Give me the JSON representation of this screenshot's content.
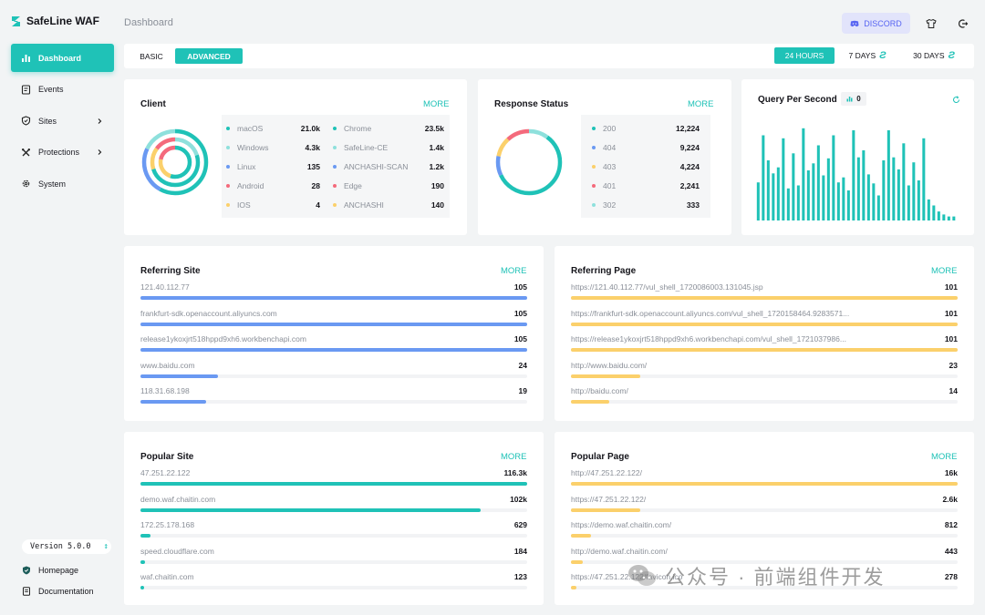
{
  "app": {
    "name": "SafeLine WAF",
    "page_title": "Dashboard"
  },
  "colors": {
    "accent": "#1fc2b7",
    "blue": "#6a99f2",
    "yellow": "#fbd06b",
    "red": "#f46a7c",
    "light_teal": "#8ee0dc",
    "discord": "#5865f2"
  },
  "sidebar": {
    "items": [
      {
        "label": "Dashboard",
        "icon": "bar-chart-icon",
        "active": true
      },
      {
        "label": "Events",
        "icon": "document-list-icon"
      },
      {
        "label": "Sites",
        "icon": "shield-icon",
        "has_children": true
      },
      {
        "label": "Protections",
        "icon": "tools-icon",
        "has_children": true
      },
      {
        "label": "System",
        "icon": "gear-icon"
      }
    ],
    "version": "Version 5.0.0",
    "homepage": "Homepage",
    "documentation": "Documentation"
  },
  "header": {
    "discord_label": "DISCORD"
  },
  "tabs": {
    "basic": "BASIC",
    "advanced": "ADVANCED"
  },
  "ranges": {
    "h24": "24 HOURS",
    "d7": "7 DAYS",
    "d30": "30 DAYS"
  },
  "client": {
    "title": "Client",
    "more": "MORE",
    "left": [
      {
        "name": "macOS",
        "value": "21.0k",
        "color": "#1fc2b7"
      },
      {
        "name": "Windows",
        "value": "4.3k",
        "color": "#8ee0dc"
      },
      {
        "name": "Linux",
        "value": "135",
        "color": "#6a99f2"
      },
      {
        "name": "Android",
        "value": "28",
        "color": "#f46a7c"
      },
      {
        "name": "IOS",
        "value": "4",
        "color": "#fbd06b"
      }
    ],
    "right": [
      {
        "name": "Chrome",
        "value": "23.5k",
        "color": "#1fc2b7"
      },
      {
        "name": "SafeLine-CE",
        "value": "1.4k",
        "color": "#8ee0dc"
      },
      {
        "name": "ANCHASHI-SCAN",
        "value": "1.2k",
        "color": "#6a99f2"
      },
      {
        "name": "Edge",
        "value": "190",
        "color": "#f46a7c"
      },
      {
        "name": "ANCHASHI",
        "value": "140",
        "color": "#fbd06b"
      }
    ]
  },
  "response": {
    "title": "Response Status",
    "more": "MORE",
    "items": [
      {
        "name": "200",
        "value": "12,224",
        "color": "#1fc2b7"
      },
      {
        "name": "404",
        "value": "9,224",
        "color": "#6a99f2"
      },
      {
        "name": "403",
        "value": "4,224",
        "color": "#fbd06b"
      },
      {
        "name": "401",
        "value": "2,241",
        "color": "#f46a7c"
      },
      {
        "name": "302",
        "value": "333",
        "color": "#8ee0dc"
      }
    ]
  },
  "qps": {
    "title": "Query Per Second",
    "badge": "0"
  },
  "chart_data": {
    "type": "bar",
    "values": [
      0.38,
      0.85,
      0.6,
      0.47,
      0.53,
      0.82,
      0.32,
      0.67,
      0.35,
      0.92,
      0.5,
      0.57,
      0.75,
      0.45,
      0.62,
      0.85,
      0.38,
      0.43,
      0.3,
      0.9,
      0.63,
      0.7,
      0.46,
      0.37,
      0.25,
      0.6,
      0.9,
      0.63,
      0.51,
      0.77,
      0.35,
      0.58,
      0.4,
      0.82,
      0.21,
      0.15,
      0.09,
      0.06,
      0.04,
      0.04
    ],
    "color": "#1fc2b7",
    "grid": false
  },
  "referring_site": {
    "title": "Referring Site",
    "more": "MORE",
    "rows": [
      {
        "label": "121.40.112.77",
        "value": "105",
        "pct": 1.0
      },
      {
        "label": "frankfurt-sdk.openaccount.aliyuncs.com",
        "value": "105",
        "pct": 1.0
      },
      {
        "label": "release1ykoxjrt518hppd9xh6.workbenchapi.com",
        "value": "105",
        "pct": 1.0
      },
      {
        "label": "www.baidu.com",
        "value": "24",
        "pct": 0.2
      },
      {
        "label": "118.31.68.198",
        "value": "19",
        "pct": 0.17
      }
    ]
  },
  "referring_page": {
    "title": "Referring Page",
    "more": "MORE",
    "rows": [
      {
        "label": "https://121.40.112.77/vul_shell_1720086003.131045.jsp",
        "value": "101",
        "pct": 1.0
      },
      {
        "label": "https://frankfurt-sdk.openaccount.aliyuncs.com/vul_shell_1720158464.9283571...",
        "value": "101",
        "pct": 1.0
      },
      {
        "label": "https://release1ykoxjrt518hppd9xh6.workbenchapi.com/vul_shell_1721037986...",
        "value": "101",
        "pct": 1.0
      },
      {
        "label": "http://www.baidu.com/",
        "value": "23",
        "pct": 0.18
      },
      {
        "label": "http://baidu.com/",
        "value": "14",
        "pct": 0.1
      }
    ]
  },
  "popular_site": {
    "title": "Popular Site",
    "more": "MORE",
    "rows": [
      {
        "label": "47.251.22.122",
        "value": "116.3k",
        "pct": 1.0
      },
      {
        "label": "demo.waf.chaitin.com",
        "value": "102k",
        "pct": 0.88
      },
      {
        "label": "172.25.178.168",
        "value": "629",
        "pct": 0.025
      },
      {
        "label": "speed.cloudflare.com",
        "value": "184",
        "pct": 0.012
      },
      {
        "label": "waf.chaitin.com",
        "value": "123",
        "pct": 0.01
      }
    ]
  },
  "popular_page": {
    "title": "Popular Page",
    "more": "MORE",
    "rows": [
      {
        "label": "http://47.251.22.122/",
        "value": "16k",
        "pct": 1.0
      },
      {
        "label": "https://47.251.22.122/",
        "value": "2.6k",
        "pct": 0.18
      },
      {
        "label": "https://demo.waf.chaitin.com/",
        "value": "812",
        "pct": 0.052
      },
      {
        "label": "http://demo.waf.chaitin.com/",
        "value": "443",
        "pct": 0.03
      },
      {
        "label": "https://47.251.22.122/favicon.ico",
        "value": "278",
        "pct": 0.015
      }
    ]
  },
  "watermark": {
    "text": "公众号 · 前端组件开发",
    "icon": "wechat-icon"
  }
}
